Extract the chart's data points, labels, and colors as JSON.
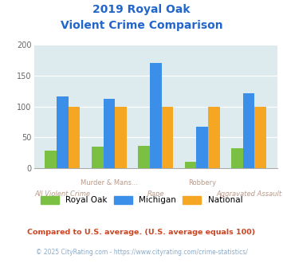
{
  "title_line1": "2019 Royal Oak",
  "title_line2": "Violent Crime Comparison",
  "categories": [
    "All Violent Crime",
    "Murder & Mans...",
    "Rape",
    "Robbery",
    "Aggravated Assault"
  ],
  "royal_oak": [
    28,
    35,
    37,
    10,
    33
  ],
  "michigan": [
    116,
    113,
    170,
    67,
    122
  ],
  "national": [
    100,
    100,
    100,
    100,
    100
  ],
  "colors": {
    "royal_oak": "#7ac143",
    "michigan": "#3b8fe8",
    "national": "#f5a623"
  },
  "ylim": [
    0,
    200
  ],
  "yticks": [
    0,
    50,
    100,
    150,
    200
  ],
  "bg_color": "#ddeaee",
  "title_color": "#2266cc",
  "label_color_upper": "#bb9988",
  "label_color_lower": "#bb9988",
  "footnote1": "Compared to U.S. average. (U.S. average equals 100)",
  "footnote2": "© 2025 CityRating.com - https://www.cityrating.com/crime-statistics/",
  "footnote1_color": "#cc4422",
  "footnote2_color": "#88aacc",
  "legend_labels": [
    "Royal Oak",
    "Michigan",
    "National"
  ]
}
